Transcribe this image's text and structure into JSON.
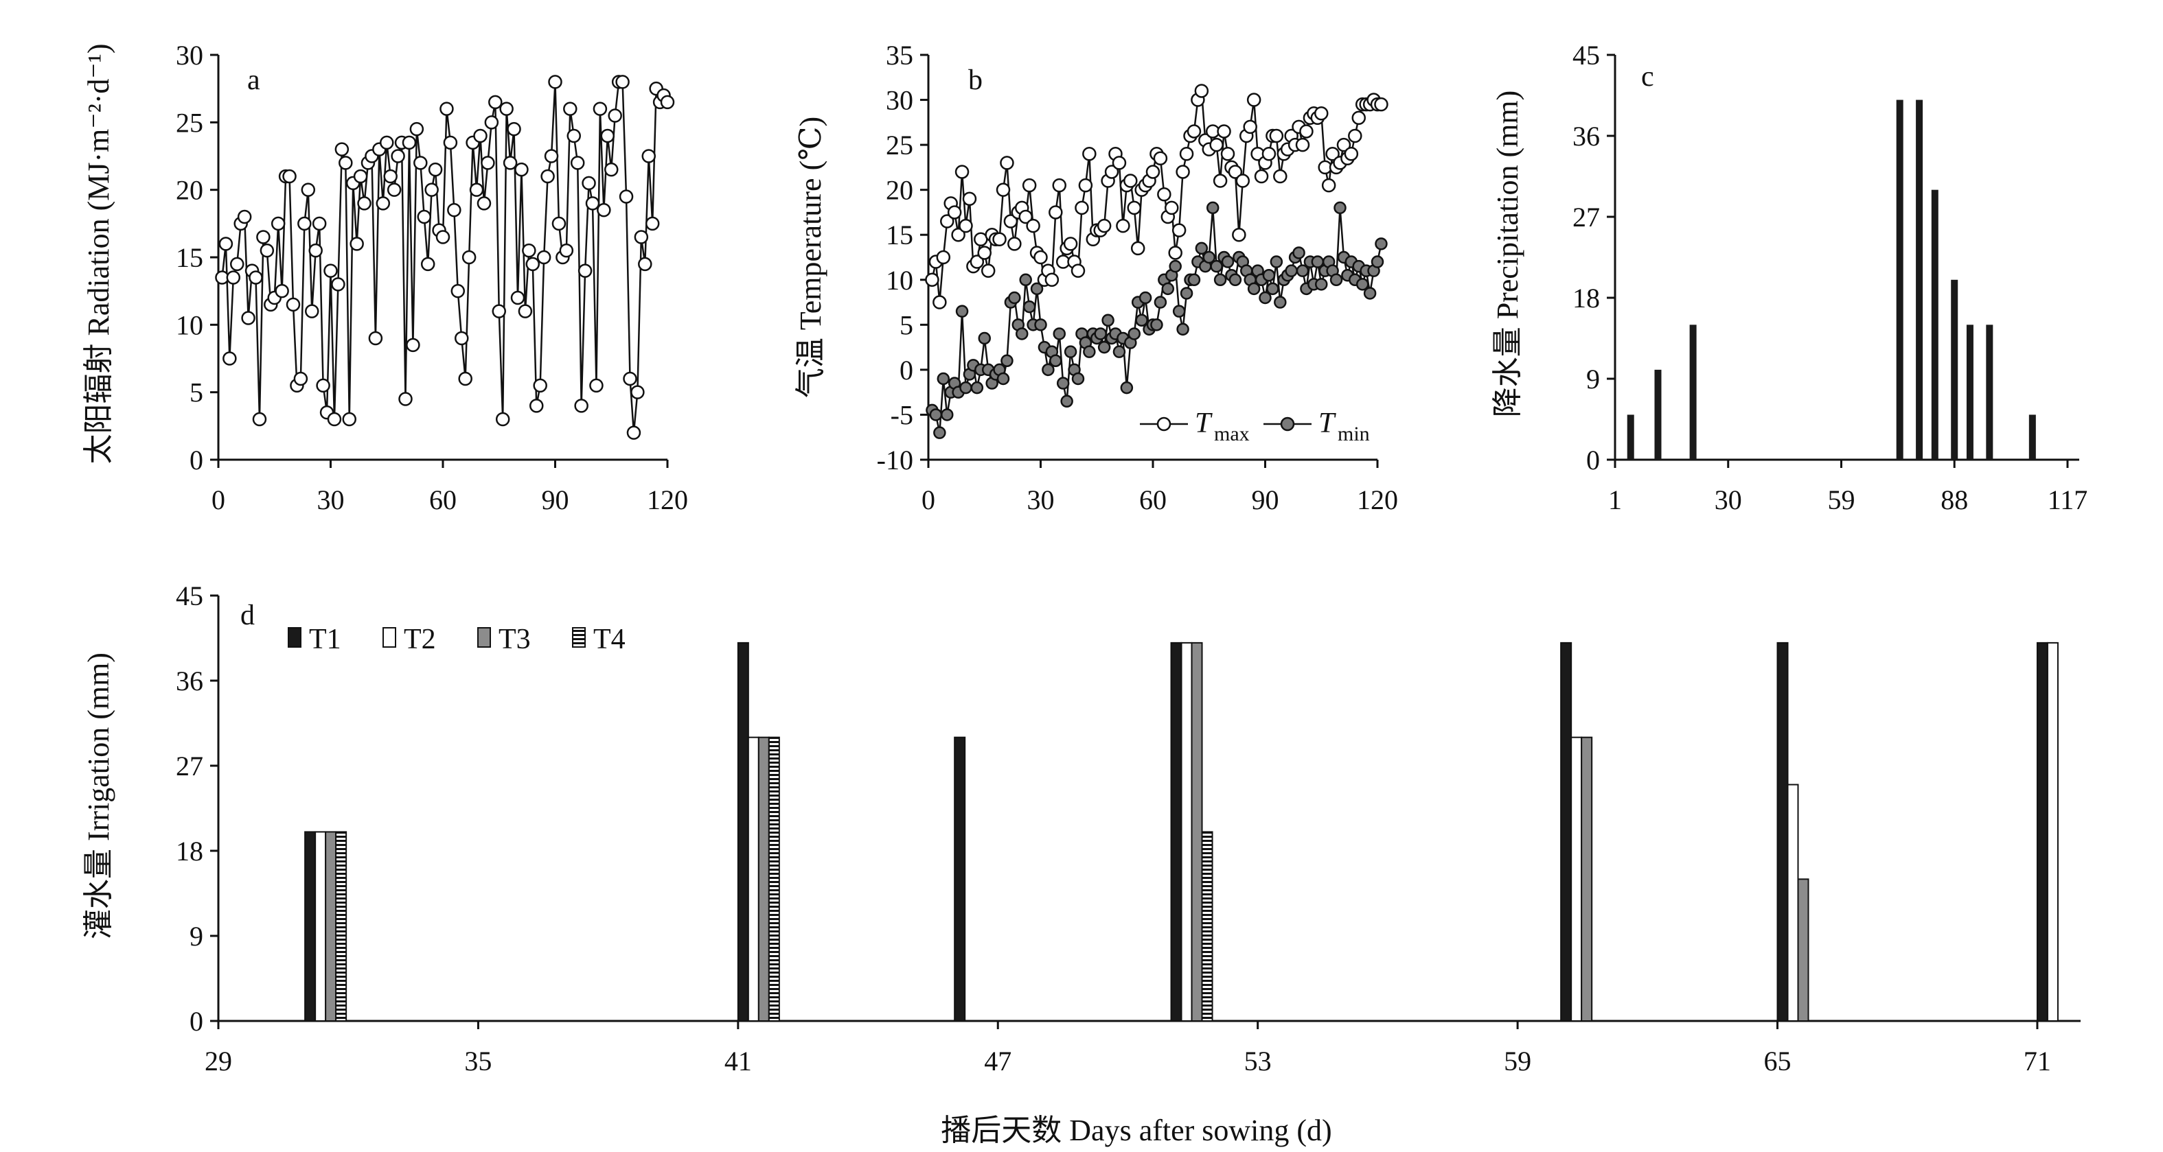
{
  "colors": {
    "axis": "#111111",
    "tmax_fill": "#ffffff",
    "tmin_fill": "#7a7a7a",
    "bar_t1": "#1a1a1a",
    "bar_t2": "#ffffff",
    "bar_t3": "#8c8c8c",
    "bar_t4": "hatched-black-white"
  },
  "figure": {
    "xlabel": "播后天数 Days after sowing (d)"
  },
  "chart_data": [
    {
      "panel": "a",
      "type": "line",
      "marker": "open-circle",
      "ylabel": "太阳辐射 Radiation (MJ·m⁻²·d⁻¹)",
      "xlim": [
        0,
        120
      ],
      "ylim": [
        0,
        30
      ],
      "xticks": [
        0,
        30,
        60,
        90,
        120
      ],
      "yticks": [
        0,
        5,
        10,
        15,
        20,
        25,
        30
      ],
      "series": [
        {
          "values": [
            13.5,
            16,
            7.5,
            13.5,
            14.5,
            17.5,
            18,
            10.5,
            14,
            13.5,
            3,
            16.5,
            15.5,
            11.5,
            12,
            17.5,
            12.5,
            21,
            21,
            11.5,
            5.5,
            6,
            17.5,
            20,
            11,
            15.5,
            17.5,
            5.5,
            3.5,
            14,
            3,
            13,
            23,
            22,
            3,
            20.5,
            16,
            21,
            19,
            22,
            22.5,
            9,
            23,
            19,
            23.5,
            21,
            20,
            22.5,
            23.5,
            4.5,
            23.5,
            8.5,
            24.5,
            22,
            18,
            14.5,
            20,
            21.5,
            17,
            16.5,
            26,
            23.5,
            18.5,
            12.5,
            9,
            6,
            15,
            23.5,
            20,
            24,
            19,
            22,
            25,
            26.5,
            11,
            3,
            26,
            22,
            24.5,
            12,
            21.5,
            11,
            15.5,
            14.5,
            4,
            5.5,
            15,
            21,
            22.5,
            28,
            17.5,
            15,
            15.5,
            26,
            24,
            22,
            4,
            14,
            20.5,
            19,
            5.5,
            26,
            18.5,
            24,
            21.5,
            25.5,
            28,
            28,
            19.5,
            6,
            2,
            5,
            16.5,
            14.5,
            22.5,
            17.5,
            27.5,
            26.5,
            27,
            26.5
          ]
        }
      ]
    },
    {
      "panel": "b",
      "type": "line",
      "ylabel": "气温 Temperature (℃)",
      "xlim": [
        0,
        120
      ],
      "ylim": [
        -10,
        35
      ],
      "xticks": [
        0,
        30,
        60,
        90,
        120
      ],
      "yticks": [
        -10,
        -5,
        0,
        5,
        10,
        15,
        20,
        25,
        30,
        35
      ],
      "legend": {
        "placement": "bottom-right"
      },
      "series": [
        {
          "name": "T",
          "name_sub": "max",
          "marker": "open-circle",
          "values": [
            10,
            12,
            7.5,
            12.5,
            16.5,
            18.5,
            17.5,
            15,
            22,
            16,
            19,
            11.5,
            12,
            14.5,
            13,
            11,
            15,
            14.5,
            14.5,
            20,
            23,
            16.5,
            14,
            17.5,
            18,
            17,
            20.5,
            16,
            13,
            12.5,
            10,
            11,
            10,
            17.5,
            20.5,
            12,
            13.5,
            14,
            12,
            11,
            18,
            20.5,
            24,
            14.5,
            15.5,
            15.5,
            16,
            21,
            22,
            24,
            23,
            16,
            20.5,
            21,
            18,
            13.5,
            20,
            20.5,
            21,
            22,
            24,
            23.5,
            19.5,
            17,
            18,
            13,
            15.5,
            22,
            24,
            26,
            26.5,
            30,
            31,
            25.5,
            24.5,
            26.5,
            25,
            21,
            26.5,
            24,
            22.5,
            22,
            15,
            21,
            26,
            27,
            30,
            24,
            21.5,
            23,
            24,
            26,
            26,
            21.5,
            24,
            24.5,
            26,
            25,
            27,
            25,
            26.5,
            28,
            28.5,
            28,
            28.5,
            22.5,
            20.5,
            24,
            22.5,
            23,
            25,
            23.5,
            24,
            26,
            28,
            29.5,
            29.5,
            29.5,
            30,
            29.5,
            29.5
          ]
        },
        {
          "name": "T",
          "name_sub": "min",
          "marker": "filled-circle",
          "values": [
            -4.5,
            -5,
            -7,
            -1,
            -5,
            -2.5,
            -1.5,
            -2.5,
            6.5,
            -2,
            -0.5,
            0.5,
            -2,
            0,
            3.5,
            0,
            -1.5,
            -0.5,
            0,
            -1,
            1,
            7.5,
            8,
            5,
            4,
            10,
            7,
            5,
            9,
            5,
            2.5,
            0,
            2,
            1,
            4,
            -1.5,
            -3.5,
            2,
            0,
            -1,
            4,
            3,
            2,
            4,
            3.5,
            4,
            2.5,
            5.5,
            3.5,
            4,
            2,
            3.5,
            -2,
            3,
            4,
            7.5,
            5.5,
            8,
            4.5,
            5,
            5,
            7.5,
            10,
            9,
            10.5,
            11.5,
            6.5,
            4.5,
            8.5,
            10,
            10,
            12,
            13.5,
            11.5,
            12.5,
            18,
            11.5,
            10,
            12.5,
            12,
            10.5,
            10,
            12.5,
            12,
            11,
            10,
            9,
            11,
            10,
            8,
            10.5,
            9,
            12,
            7.5,
            10,
            10.5,
            11,
            12.5,
            13,
            11,
            9,
            12,
            9.5,
            12,
            9.5,
            11,
            12,
            11,
            10,
            18,
            12.5,
            10.5,
            12,
            10,
            11.5,
            9.5,
            11,
            8.5,
            11,
            12,
            14
          ]
        }
      ]
    },
    {
      "panel": "c",
      "type": "bar",
      "ylabel": "降水量 Precipitation (mm)",
      "xlim": [
        1,
        120
      ],
      "ylim": [
        0,
        45
      ],
      "xticks": [
        1,
        30,
        59,
        88,
        117
      ],
      "yticks": [
        0,
        9,
        18,
        27,
        36,
        45
      ],
      "x": [
        5,
        12,
        21,
        74,
        79,
        83,
        88,
        92,
        97,
        108
      ],
      "values": [
        5,
        10,
        15,
        40,
        40,
        30,
        20,
        15,
        15,
        5
      ]
    },
    {
      "panel": "d",
      "type": "bar",
      "ylabel": "灌水量 Irrigation (mm)",
      "xlim": [
        29,
        72
      ],
      "ylim": [
        0,
        45
      ],
      "xticks": [
        29,
        35,
        41,
        47,
        53,
        59,
        65,
        71
      ],
      "yticks": [
        0,
        9,
        18,
        27,
        36,
        45
      ],
      "legend": {
        "placement": "top-left"
      },
      "categories": [
        31,
        41,
        46,
        51,
        60,
        65,
        71
      ],
      "series": [
        {
          "name": "T1",
          "values": [
            20,
            40,
            30,
            40,
            40,
            40,
            40
          ]
        },
        {
          "name": "T2",
          "values": [
            20,
            30,
            0,
            40,
            30,
            25,
            40
          ]
        },
        {
          "name": "T3",
          "values": [
            20,
            30,
            0,
            40,
            30,
            15,
            0
          ]
        },
        {
          "name": "T4",
          "values": [
            20,
            30,
            0,
            20,
            0,
            0,
            0
          ]
        }
      ]
    }
  ]
}
